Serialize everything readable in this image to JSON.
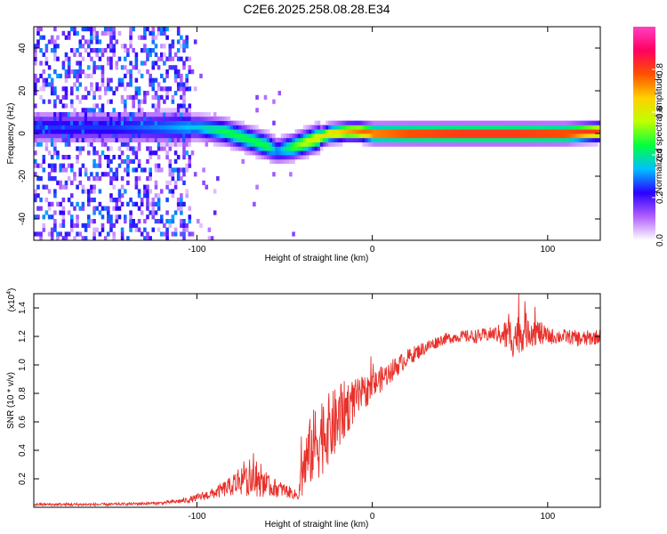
{
  "figure_title": "C2E6.2025.258.08.28.E34",
  "chart_data": [
    {
      "type": "heatmap",
      "name": "spectrogram",
      "xlabel": "Height of straight line (km)",
      "ylabel": "Frequency (Hz)",
      "xlim": [
        -193,
        130
      ],
      "ylim": [
        -50,
        50
      ],
      "xticks": [
        {
          "value": -100,
          "label": "-100"
        },
        {
          "value": 0,
          "label": "0"
        },
        {
          "value": 100,
          "label": "100"
        }
      ],
      "yticks": [
        {
          "value": -40,
          "label": "-40"
        },
        {
          "value": -20,
          "label": "-20"
        },
        {
          "value": 0,
          "label": "0"
        },
        {
          "value": 20,
          "label": "20"
        },
        {
          "value": 40,
          "label": "40"
        }
      ],
      "colorbar": {
        "label": "Normalized spectral amplitude",
        "range": [
          0,
          1
        ],
        "ticks": [
          {
            "value": 0.0,
            "label": "0.0"
          },
          {
            "value": 0.2,
            "label": "0.2"
          },
          {
            "value": 0.4,
            "label": "0.4"
          },
          {
            "value": 0.6,
            "label": "0.6"
          },
          {
            "value": 0.8,
            "label": "0.8"
          }
        ],
        "stops": [
          "#ffffff",
          "#b060ff",
          "#2b00ff",
          "#00c0ff",
          "#00ff40",
          "#c0ff00",
          "#ffd000",
          "#ff5000",
          "#ff0060",
          "#ff40c0"
        ]
      },
      "ridge": {
        "x": [
          -193,
          -150,
          -120,
          -100,
          -85,
          -70,
          -60,
          -55,
          -45,
          -35,
          -25,
          -15,
          -8,
          0,
          20,
          50,
          80,
          110,
          130
        ],
        "frequency": [
          3,
          3,
          3,
          3,
          1,
          -3,
          -6,
          -8,
          -6,
          -3,
          0,
          1,
          1,
          0,
          0,
          0,
          0,
          0,
          1
        ],
        "amplitude": [
          0.25,
          0.25,
          0.3,
          0.35,
          0.45,
          0.45,
          0.45,
          0.3,
          0.5,
          0.6,
          0.65,
          0.7,
          0.75,
          0.8,
          0.85,
          0.88,
          0.88,
          0.85,
          0.8
        ]
      }
    },
    {
      "type": "line",
      "name": "snr",
      "xlabel": "Height of straight line (km)",
      "ylabel": "SNR (10 * v/v)",
      "y_scale_label": "(x10",
      "y_scale_exponent": "4",
      "xlim": [
        -193,
        130
      ],
      "ylim": [
        0,
        1.5
      ],
      "xticks": [
        {
          "value": -100,
          "label": "-100"
        },
        {
          "value": 0,
          "label": "0"
        },
        {
          "value": 100,
          "label": "100"
        }
      ],
      "yticks": [
        {
          "value": 0.2,
          "label": "0.2"
        },
        {
          "value": 0.4,
          "label": "0.4"
        },
        {
          "value": 0.6,
          "label": "0.6"
        },
        {
          "value": 0.8,
          "label": "0.8"
        },
        {
          "value": 1.0,
          "label": "1.0"
        },
        {
          "value": 1.2,
          "label": "1.2"
        },
        {
          "value": 1.4,
          "label": "1.4"
        }
      ],
      "color": "#e8302a",
      "series": [
        {
          "name": "SNR",
          "x": [
            -193,
            -150,
            -120,
            -105,
            -90,
            -80,
            -75,
            -70,
            -60,
            -50,
            -42,
            -40,
            -35,
            -30,
            -25,
            -20,
            -15,
            -10,
            -5,
            0,
            10,
            20,
            30,
            40,
            50,
            60,
            70,
            80,
            90,
            100,
            110,
            120,
            130
          ],
          "y": [
            0.02,
            0.02,
            0.03,
            0.05,
            0.1,
            0.15,
            0.2,
            0.18,
            0.15,
            0.12,
            0.08,
            0.25,
            0.4,
            0.5,
            0.55,
            0.6,
            0.7,
            0.75,
            0.8,
            0.85,
            0.95,
            1.05,
            1.12,
            1.18,
            1.2,
            1.2,
            1.22,
            1.2,
            1.25,
            1.2,
            1.2,
            1.18,
            1.2
          ],
          "noise": [
            0.01,
            0.01,
            0.01,
            0.02,
            0.04,
            0.07,
            0.12,
            0.1,
            0.08,
            0.05,
            0.03,
            0.2,
            0.25,
            0.3,
            0.25,
            0.25,
            0.2,
            0.15,
            0.12,
            0.1,
            0.08,
            0.06,
            0.05,
            0.04,
            0.04,
            0.05,
            0.05,
            0.15,
            0.12,
            0.06,
            0.05,
            0.06,
            0.05
          ]
        }
      ]
    }
  ]
}
